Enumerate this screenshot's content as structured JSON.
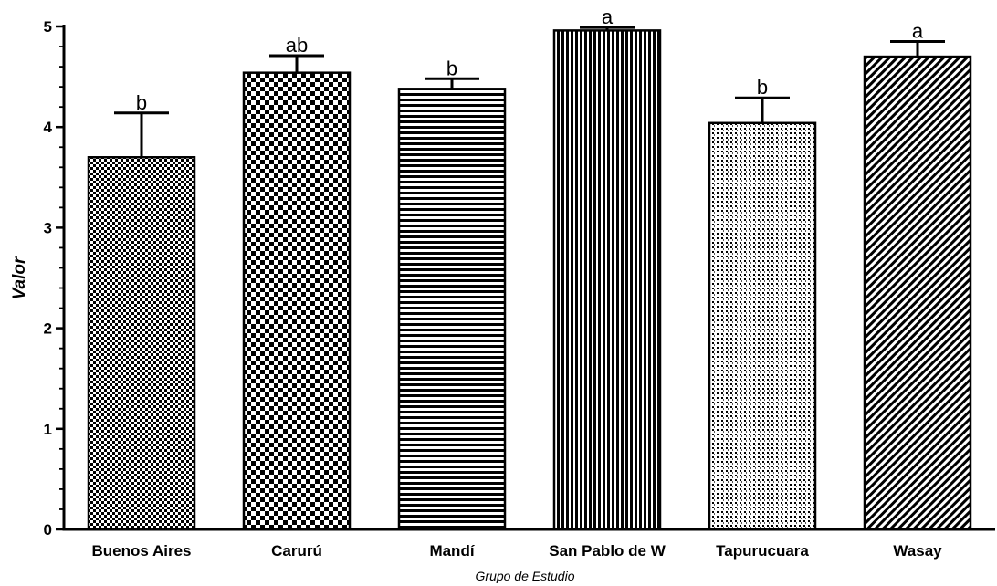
{
  "chart_data": {
    "type": "bar",
    "title": "",
    "xlabel": "Grupo de Estudio",
    "ylabel": "Valor",
    "ylim": [
      0,
      5
    ],
    "yticks": [
      "0",
      "1",
      "2",
      "3",
      "4",
      "5"
    ],
    "grid": false,
    "categories": [
      "Buenos Aires",
      "Carurú",
      "Mandí",
      "San Pablo de W",
      "Tapurucuara",
      "Wasay"
    ],
    "values": [
      3.7,
      4.54,
      4.38,
      4.96,
      4.04,
      4.7
    ],
    "error": [
      0.44,
      0.17,
      0.1,
      0.03,
      0.25,
      0.15
    ],
    "significance": [
      "b",
      "ab",
      "b",
      "a",
      "b",
      "a"
    ],
    "patterns": [
      "fine-checker",
      "checker",
      "horizontal-lines",
      "vertical-lines",
      "dots",
      "diagonal-lines"
    ]
  }
}
